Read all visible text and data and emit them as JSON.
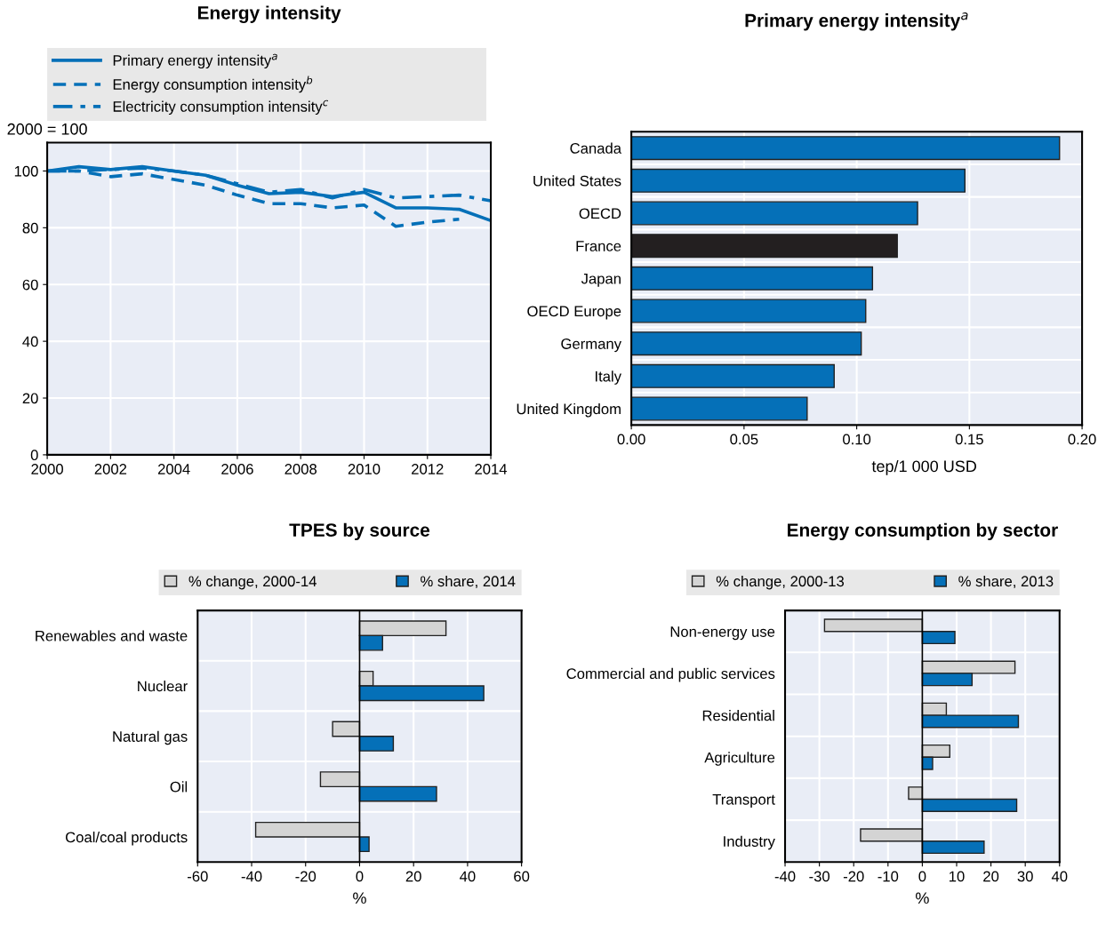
{
  "chart_data": [
    {
      "type": "line",
      "title": "Energy intensity",
      "ylabel": "2000 = 100",
      "x": [
        2000,
        2001,
        2002,
        2003,
        2004,
        2005,
        2006,
        2007,
        2008,
        2009,
        2010,
        2011,
        2012,
        2013,
        2014
      ],
      "xlim": [
        2000,
        2014
      ],
      "xticks": [
        2000,
        2002,
        2004,
        2006,
        2008,
        2010,
        2012,
        2014
      ],
      "ylim": [
        0,
        110
      ],
      "yticks": [
        0,
        20,
        40,
        60,
        80,
        100
      ],
      "grid": true,
      "legend": "top",
      "series": [
        {
          "name": "Primary energy intensity$^{a}$",
          "color": "#0570b8",
          "line_style": "solid",
          "values": [
            100,
            101.5,
            100.5,
            101.5,
            100,
            98.5,
            95,
            92,
            92.5,
            91,
            92.5,
            87,
            87,
            86.5,
            82.5
          ]
        },
        {
          "name": "Energy consumption intensity$^{b}$",
          "color": "#0570b8",
          "line_style": "dashed",
          "values": [
            100,
            100,
            98,
            99,
            97,
            95,
            91.5,
            88.5,
            88.5,
            87,
            88,
            80.5,
            82,
            83,
            null
          ]
        },
        {
          "name": "Electricity consumption intensity$^{c}$",
          "color": "#0570b8",
          "line_style": "dashdot",
          "values": [
            100,
            100,
            100.5,
            101,
            100,
            98.5,
            95.5,
            92.5,
            93.5,
            90.5,
            93.5,
            90.5,
            91,
            91.5,
            89.5
          ]
        }
      ]
    },
    {
      "type": "bar",
      "orientation": "horizontal",
      "title": "Primary energy intensity$^{a}$",
      "xlabel": "tep/1 000 USD",
      "categories": [
        "Canada",
        "United States",
        "OECD",
        "France",
        "Japan",
        "OECD Europe",
        "Germany",
        "Italy",
        "United Kingdom"
      ],
      "values": [
        0.19,
        0.148,
        0.127,
        0.118,
        0.107,
        0.104,
        0.102,
        0.09,
        0.078
      ],
      "colors": [
        "#0570b8",
        "#0570b8",
        "#0570b8",
        "#231f20",
        "#0570b8",
        "#0570b8",
        "#0570b8",
        "#0570b8",
        "#0570b8"
      ],
      "xlim": [
        0,
        0.2
      ],
      "xticks": [
        {
          "value": 0,
          "label": "0.00"
        },
        0.05,
        {
          "value": 0.1,
          "label": "0.10"
        },
        0.15,
        {
          "value": 0.2,
          "label": "0.20"
        }
      ],
      "grid": true
    },
    {
      "type": "bar",
      "orientation": "horizontal",
      "title": "TPES by source",
      "xlabel": "%",
      "categories": [
        "Renewables and waste",
        "Nuclear",
        "Natural gas",
        "Oil",
        "Coal/coal products"
      ],
      "xlim": [
        -60,
        60
      ],
      "xticks": [
        -60,
        -40,
        -20,
        0,
        20,
        40,
        60
      ],
      "grid": true,
      "legend": "top",
      "series": [
        {
          "name": "% change, 2000-14",
          "color": "#d4d4d4",
          "values": [
            32,
            5,
            -10,
            -14.5,
            -38.5
          ]
        },
        {
          "name": "% share, 2014",
          "color": "#0570b8",
          "values": [
            8.5,
            46,
            12.5,
            28.5,
            3.5
          ]
        }
      ]
    },
    {
      "type": "bar",
      "orientation": "horizontal",
      "title": "Energy consumption by sector",
      "xlabel": "%",
      "categories": [
        "Non-energy use",
        "Commercial and public services",
        "Residential",
        "Agriculture",
        "Transport",
        "Industry"
      ],
      "xlim": [
        -40,
        40
      ],
      "xticks": [
        -40,
        -30,
        -20,
        -10,
        0,
        10,
        20,
        30,
        40
      ],
      "grid": true,
      "legend": "top",
      "series": [
        {
          "name": "% change, 2000-13",
          "color": "#d4d4d4",
          "values": [
            -28.5,
            27,
            7,
            8,
            -4,
            -18
          ]
        },
        {
          "name": "% share, 2013",
          "color": "#0570b8",
          "values": [
            9.5,
            14.5,
            28,
            3,
            27.5,
            18
          ]
        }
      ]
    }
  ]
}
